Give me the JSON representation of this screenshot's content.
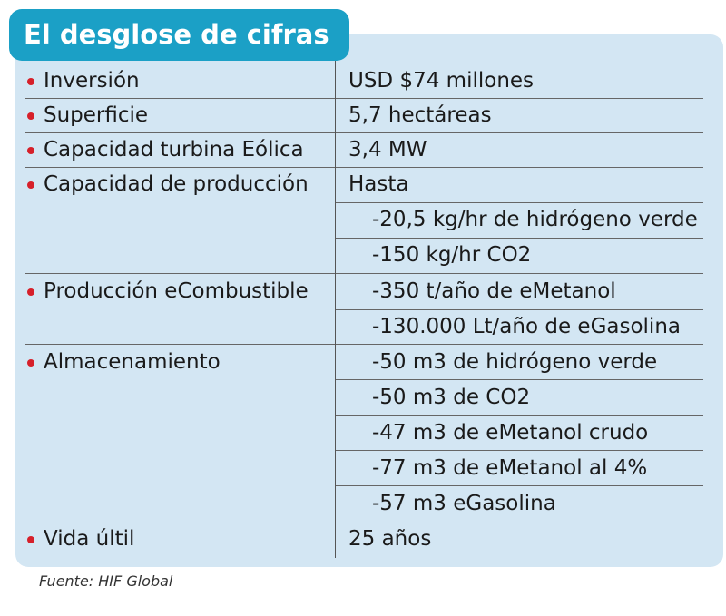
{
  "title": "El desglose de cifras",
  "accent_color": "#1ba0c6",
  "bullet_color": "#d6202a",
  "panel_color": "#d3e6f3",
  "rows": [
    {
      "label": "Inversión",
      "value": "USD $74 millones"
    },
    {
      "label": "Superficie",
      "value": "5,7 hectáreas"
    },
    {
      "label": "Capacidad turbina Eólica",
      "value": "3,4 MW"
    },
    {
      "label": "Capacidad de producción",
      "value": "Hasta"
    },
    {
      "label": "",
      "value": "-20,5 kg/hr de hidrógeno verde"
    },
    {
      "label": "",
      "value": "-150 kg/hr CO2"
    },
    {
      "label": "Producción eCombustible",
      "value": "-350 t/año de eMetanol"
    },
    {
      "label": "",
      "value": "-130.000 Lt/año de eGasolina"
    },
    {
      "label": "Almacenamiento",
      "value": "-50 m3 de hidrógeno verde"
    },
    {
      "label": "",
      "value": "-50 m3 de CO2"
    },
    {
      "label": "",
      "value": "-47 m3 de eMetanol crudo"
    },
    {
      "label": "",
      "value": "-77 m3 de eMetanol al 4%"
    },
    {
      "label": "",
      "value": "-57 m3 eGasolina"
    },
    {
      "label": "Vida últil",
      "value": "25 años"
    }
  ],
  "source": "Fuente:  HIF Global"
}
